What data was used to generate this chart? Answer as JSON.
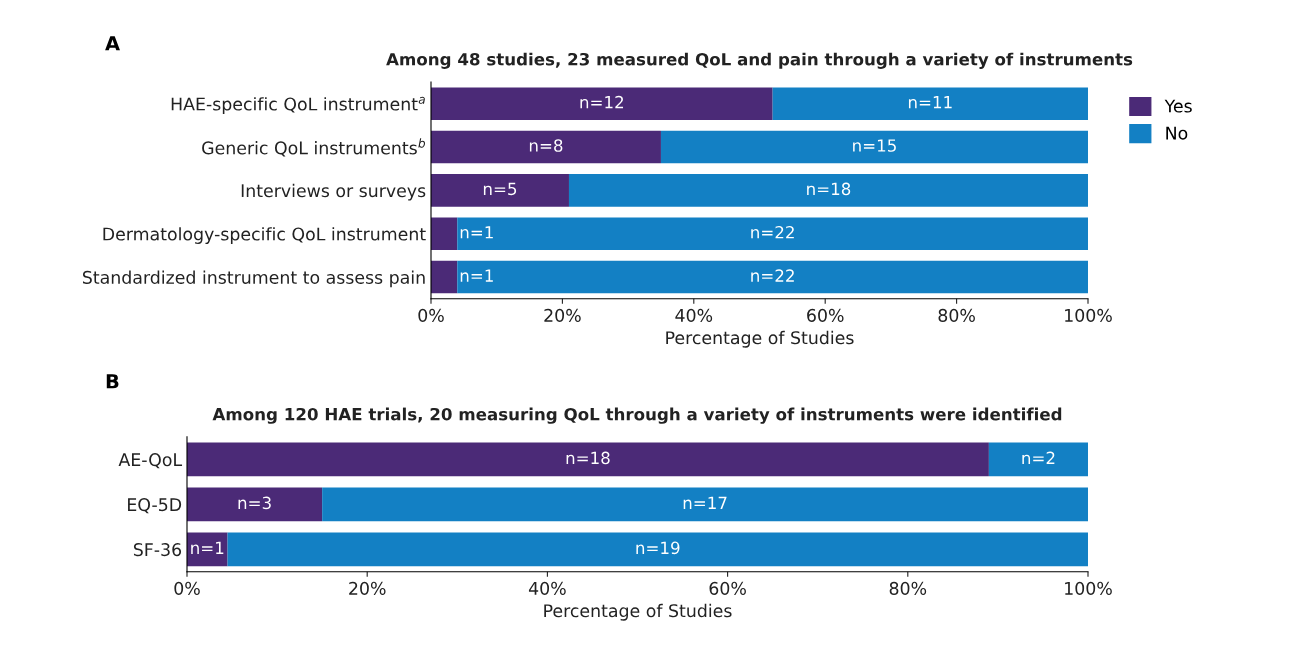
{
  "chart_data": [
    {
      "type": "bar",
      "orientation": "horizontal",
      "stacked": true,
      "title": "Among 48 studies, 23 measured QoL and pain through a variety of instruments",
      "xlabel": "Percentage of Studies",
      "annotations": [
        "A",
        "n=12",
        "n=8",
        "n=5",
        "n=1",
        "n=1",
        "n=11",
        "n=15",
        "n=18",
        "n=22",
        "n=22"
      ],
      "categories": [
        "HAE-specific QoL instrument$^{a}$",
        "Generic QoL instruments$^{b}$",
        "Interviews or surveys",
        "Dermatology-specific QoL instrument",
        "Standardized instrument to assess pain"
      ],
      "series": [
        {
          "name": "Yes",
          "color": "#4b2a77",
          "values": [
            52,
            35,
            21,
            4,
            4
          ]
        },
        {
          "name": "No",
          "color": "#1380c4",
          "values": [
            48,
            65,
            79,
            96,
            96
          ]
        }
      ],
      "xlim": [
        0,
        100
      ],
      "xticks": [
        {
          "value": 0,
          "label": "0%"
        },
        {
          "value": 20,
          "label": "20%"
        },
        {
          "value": 40,
          "label": "40%"
        },
        {
          "value": 60,
          "label": "60%"
        },
        {
          "value": 80,
          "label": "80%"
        },
        {
          "value": 100,
          "label": "100%"
        }
      ],
      "legend": "top right",
      "grid": false
    },
    {
      "type": "bar",
      "orientation": "horizontal",
      "stacked": true,
      "title": "Among 120 HAE trials, 20 measuring QoL through a variety of instruments were identified",
      "xlabel": "Percentage of Studies",
      "annotations": [
        "B",
        "n=18",
        "n=3",
        "n=1",
        "n=2",
        "n=17",
        "n=19"
      ],
      "categories": [
        "AE-QoL",
        "EQ-5D",
        "SF-36"
      ],
      "series": [
        {
          "color": "#4b2a77",
          "values": [
            89,
            15,
            4.5
          ]
        },
        {
          "color": "#1380c4",
          "values": [
            11,
            85,
            95.5
          ]
        }
      ],
      "xlim": [
        0,
        100
      ],
      "xticks": [
        {
          "value": 0,
          "label": "0%"
        },
        {
          "value": 20,
          "label": "20%"
        },
        {
          "value": 40,
          "label": "40%"
        },
        {
          "value": 60,
          "label": "60%"
        },
        {
          "value": 80,
          "label": "80%"
        },
        {
          "value": 100,
          "label": "100%"
        }
      ],
      "grid": false
    }
  ]
}
